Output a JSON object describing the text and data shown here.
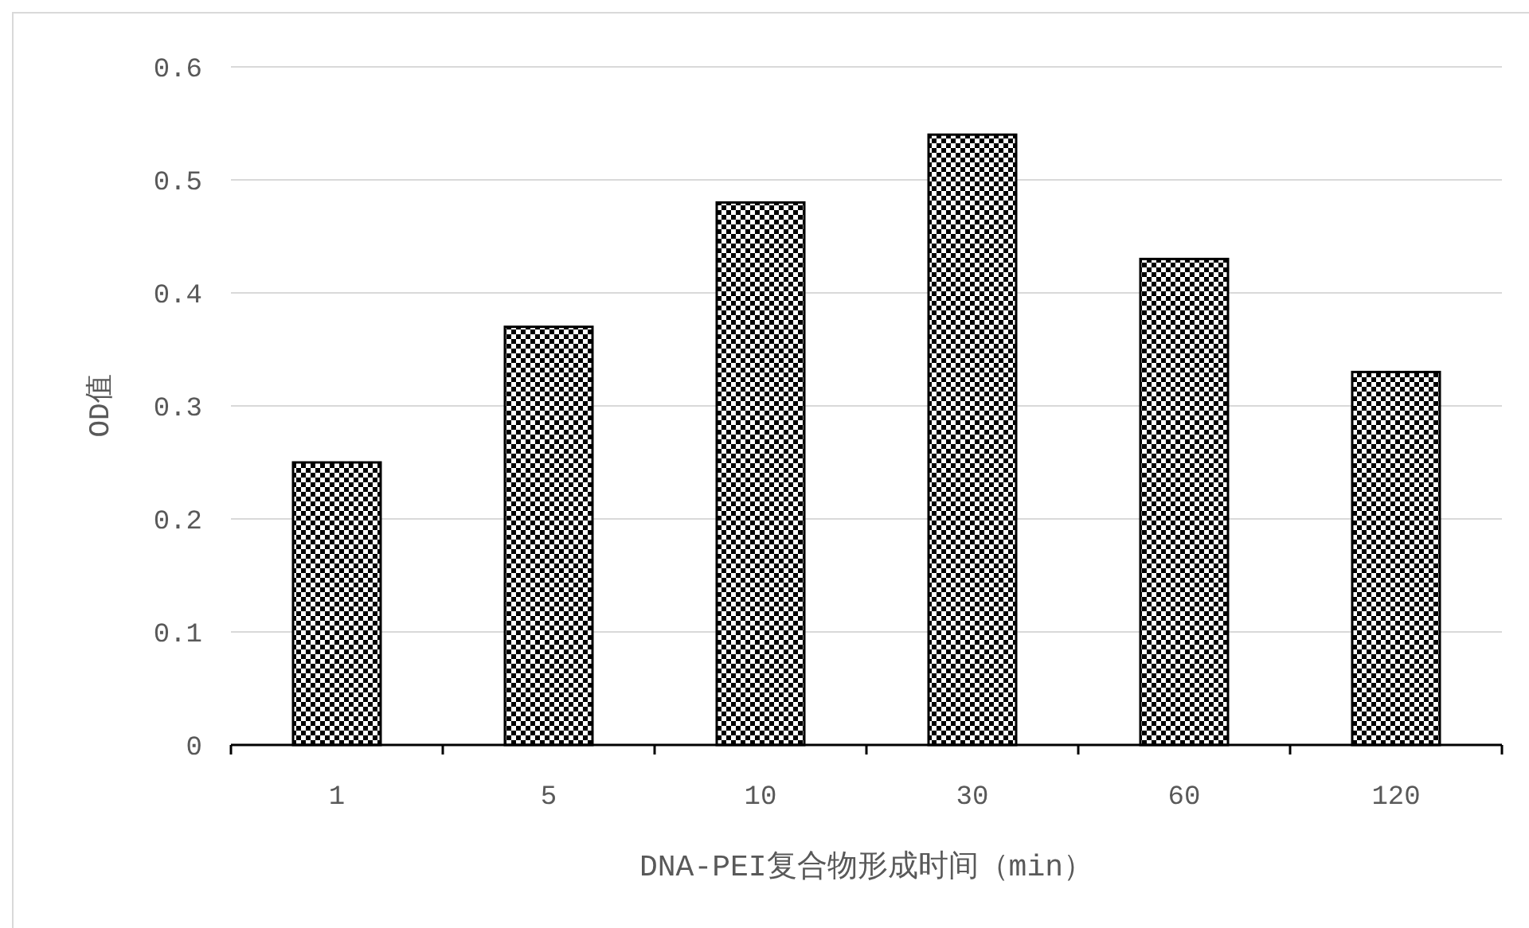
{
  "chart_data": {
    "type": "bar",
    "xlabel": "DNA-PEI复合物形成时间（min）",
    "ylabel": "OD值",
    "categories": [
      "1",
      "5",
      "10",
      "30",
      "60",
      "120"
    ],
    "values": [
      0.25,
      0.37,
      0.48,
      0.54,
      0.43,
      0.33
    ],
    "color": "#000000",
    "ylim": [
      0,
      0.6
    ],
    "yticks": [
      0,
      0.1,
      0.2,
      0.3,
      0.4,
      0.5,
      0.6
    ],
    "grid": "y"
  }
}
